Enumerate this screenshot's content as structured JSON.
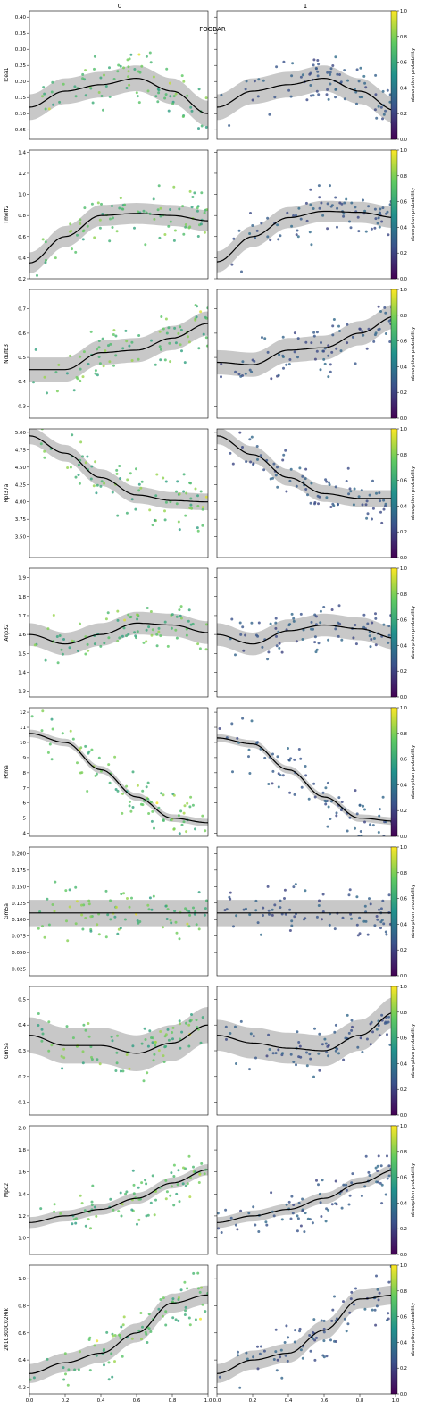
{
  "figure": {
    "title": "FOOBAR",
    "column_titles": [
      "0",
      "1"
    ],
    "colorbar_label": "absorption probability",
    "colorbar_ticks": [
      "0.0",
      "0.2",
      "0.4",
      "0.6",
      "0.8",
      "1.0"
    ],
    "x_ticks": [
      "0.0",
      "0.2",
      "0.4",
      "0.6",
      "0.8",
      "1.0"
    ],
    "colors": {
      "fit_line": "#000000",
      "ci_band": "#c8c8c8",
      "colormap": [
        "#440154",
        "#3b528b",
        "#21918c",
        "#5ec962",
        "#fde725"
      ]
    }
  },
  "chart_data": [
    {
      "type": "scatter",
      "gene": "Tcea1",
      "ylabel": "Tcea1",
      "xlim": [
        0,
        1
      ],
      "ylim": [
        0.02,
        0.42
      ],
      "yticks": [
        "0.05",
        "0.10",
        "0.15",
        "0.20",
        "0.25",
        "0.30",
        "0.35",
        "0.40"
      ],
      "curves": [
        {
          "x": [
            0,
            0.2,
            0.4,
            0.6,
            0.8,
            1.0
          ],
          "y": [
            0.12,
            0.17,
            0.19,
            0.21,
            0.17,
            0.1
          ],
          "ci": 0.04
        },
        {
          "x": [
            0,
            0.2,
            0.4,
            0.6,
            0.8,
            1.0
          ],
          "y": [
            0.12,
            0.17,
            0.19,
            0.21,
            0.17,
            0.11
          ],
          "ci": 0.04
        }
      ]
    },
    {
      "type": "scatter",
      "gene": "Tmeff2",
      "ylabel": "Tmeff2",
      "xlim": [
        0,
        1
      ],
      "ylim": [
        0.2,
        1.42
      ],
      "yticks": [
        "0.2",
        "0.4",
        "0.6",
        "0.8",
        "1.0",
        "1.2",
        "1.4"
      ],
      "curves": [
        {
          "x": [
            0,
            0.2,
            0.4,
            0.6,
            0.8,
            1.0
          ],
          "y": [
            0.35,
            0.6,
            0.8,
            0.82,
            0.8,
            0.75
          ],
          "ci": 0.1
        },
        {
          "x": [
            0,
            0.2,
            0.4,
            0.6,
            0.8,
            1.0
          ],
          "y": [
            0.36,
            0.6,
            0.78,
            0.84,
            0.83,
            0.78
          ],
          "ci": 0.1
        }
      ]
    },
    {
      "type": "scatter",
      "gene": "Ndufb3",
      "ylabel": "Ndufb3",
      "xlim": [
        0,
        1
      ],
      "ylim": [
        0.25,
        0.78
      ],
      "yticks": [
        "0.3",
        "0.4",
        "0.5",
        "0.6",
        "0.7"
      ],
      "curves": [
        {
          "x": [
            0,
            0.2,
            0.4,
            0.6,
            0.8,
            1.0
          ],
          "y": [
            0.45,
            0.45,
            0.52,
            0.53,
            0.58,
            0.64
          ],
          "ci": 0.05
        },
        {
          "x": [
            0,
            0.2,
            0.4,
            0.6,
            0.8,
            1.0
          ],
          "y": [
            0.48,
            0.47,
            0.53,
            0.54,
            0.6,
            0.67
          ],
          "ci": 0.05
        }
      ]
    },
    {
      "type": "scatter",
      "gene": "Rpl37a",
      "ylabel": "Rpl37a",
      "xlim": [
        0,
        1
      ],
      "ylim": [
        3.2,
        5.05
      ],
      "yticks": [
        "3.50",
        "3.75",
        "4.00",
        "4.25",
        "4.50",
        "4.75",
        "5.00"
      ],
      "curves": [
        {
          "x": [
            0,
            0.2,
            0.4,
            0.6,
            0.8,
            1.0
          ],
          "y": [
            4.95,
            4.7,
            4.35,
            4.1,
            4.02,
            4.0
          ],
          "ci": 0.12
        },
        {
          "x": [
            0,
            0.2,
            0.4,
            0.6,
            0.8,
            1.0
          ],
          "y": [
            4.95,
            4.68,
            4.35,
            4.12,
            4.05,
            4.05
          ],
          "ci": 0.12
        }
      ]
    },
    {
      "type": "scatter",
      "gene": "Anp32",
      "ylabel": "Anp32",
      "xlim": [
        0,
        1
      ],
      "ylim": [
        1.27,
        1.95
      ],
      "yticks": [
        "1.3",
        "1.4",
        "1.5",
        "1.6",
        "1.7",
        "1.8",
        "1.9"
      ],
      "curves": [
        {
          "x": [
            0,
            0.2,
            0.4,
            0.6,
            0.8,
            1.0
          ],
          "y": [
            1.6,
            1.55,
            1.6,
            1.66,
            1.65,
            1.61
          ],
          "ci": 0.06
        },
        {
          "x": [
            0,
            0.2,
            0.4,
            0.6,
            0.8,
            1.0
          ],
          "y": [
            1.6,
            1.55,
            1.62,
            1.65,
            1.63,
            1.58
          ],
          "ci": 0.06
        }
      ]
    },
    {
      "type": "scatter",
      "gene": "Ptma",
      "ylabel": "Ptma",
      "xlim": [
        0,
        1
      ],
      "ylim": [
        3.8,
        12.3
      ],
      "yticks": [
        "4",
        "5",
        "6",
        "7",
        "8",
        "9",
        "10",
        "11",
        "12"
      ],
      "curves": [
        {
          "x": [
            0,
            0.2,
            0.4,
            0.6,
            0.8,
            1.0
          ],
          "y": [
            10.6,
            10.0,
            8.2,
            6.4,
            5.0,
            4.7
          ],
          "ci": 0.25
        },
        {
          "x": [
            0,
            0.2,
            0.4,
            0.6,
            0.8,
            1.0
          ],
          "y": [
            10.3,
            9.9,
            8.2,
            6.4,
            5.0,
            4.8
          ],
          "ci": 0.25
        }
      ]
    },
    {
      "type": "scatter",
      "gene": "Gm5a",
      "ylabel": "Gm5a",
      "xlim": [
        0,
        1
      ],
      "ylim": [
        0.015,
        0.21
      ],
      "yticks": [
        "0.025",
        "0.050",
        "0.075",
        "0.100",
        "0.125",
        "0.150",
        "0.175",
        "0.200"
      ],
      "curves": [
        {
          "x": [
            0,
            1
          ],
          "y": [
            0.11,
            0.11
          ],
          "ci": 0.02
        },
        {
          "x": [
            0,
            1
          ],
          "y": [
            0.11,
            0.11
          ],
          "ci": 0.02
        }
      ]
    },
    {
      "type": "scatter",
      "gene": "Gm5a",
      "ylabel": "Gm5a",
      "xlim": [
        0,
        1
      ],
      "ylim": [
        0.05,
        0.55
      ],
      "yticks": [
        "0.1",
        "0.2",
        "0.3",
        "0.4",
        "0.5"
      ],
      "curves": [
        {
          "x": [
            0,
            0.2,
            0.4,
            0.6,
            0.8,
            1.0
          ],
          "y": [
            0.36,
            0.32,
            0.32,
            0.29,
            0.33,
            0.4
          ],
          "ci": 0.07
        },
        {
          "x": [
            0,
            0.2,
            0.4,
            0.6,
            0.8,
            1.0
          ],
          "y": [
            0.36,
            0.33,
            0.31,
            0.3,
            0.36,
            0.45
          ],
          "ci": 0.06
        }
      ]
    },
    {
      "type": "scatter",
      "gene": "Mpc2",
      "ylabel": "Mpc2",
      "xlim": [
        0,
        1
      ],
      "ylim": [
        0.85,
        2.02
      ],
      "yticks": [
        "1.0",
        "1.2",
        "1.4",
        "1.6",
        "1.8",
        "2.0"
      ],
      "curves": [
        {
          "x": [
            0,
            0.2,
            0.4,
            0.6,
            0.8,
            1.0
          ],
          "y": [
            1.14,
            1.2,
            1.26,
            1.36,
            1.5,
            1.62
          ],
          "ci": 0.05
        },
        {
          "x": [
            0,
            0.2,
            0.4,
            0.6,
            0.8,
            1.0
          ],
          "y": [
            1.14,
            1.2,
            1.26,
            1.36,
            1.5,
            1.62
          ],
          "ci": 0.05
        }
      ]
    },
    {
      "type": "scatter",
      "gene": "2010300C02Rik",
      "ylabel": "2010300C02Rik",
      "xlim": [
        0,
        1
      ],
      "ylim": [
        0.15,
        1.1
      ],
      "yticks": [
        "0.2",
        "0.4",
        "0.6",
        "0.8",
        "1.0"
      ],
      "curves": [
        {
          "x": [
            0,
            0.2,
            0.4,
            0.6,
            0.8,
            1.0
          ],
          "y": [
            0.3,
            0.38,
            0.45,
            0.6,
            0.82,
            0.88
          ],
          "ci": 0.07
        },
        {
          "x": [
            0,
            0.2,
            0.4,
            0.6,
            0.8,
            1.0
          ],
          "y": [
            0.3,
            0.4,
            0.45,
            0.62,
            0.85,
            0.88
          ],
          "ci": 0.07
        }
      ]
    }
  ]
}
